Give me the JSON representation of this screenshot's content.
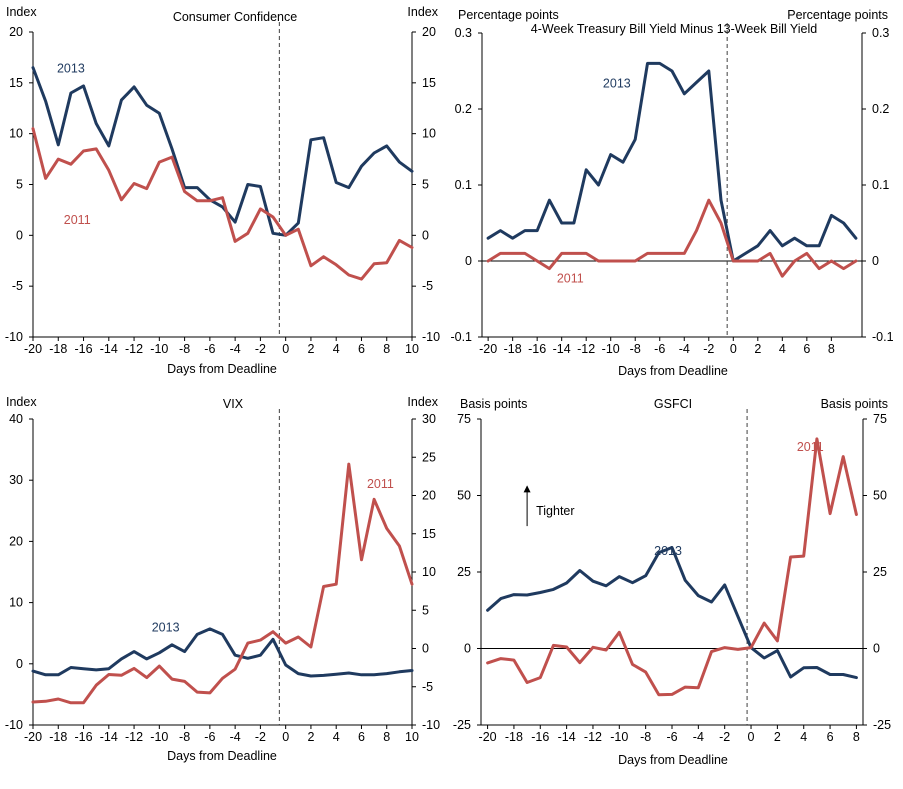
{
  "colors": {
    "series_2013": "#1f3a5f",
    "series_2011": "#c0504d",
    "axis": "#000000",
    "divider": "#404040"
  },
  "chart_data": [
    {
      "id": "cc",
      "type": "line",
      "title": "Consumer Confidence",
      "ylabel_left": "Index",
      "ylabel_right": "Index",
      "xlabel": "Days from Deadline",
      "xlim": [
        -20,
        10
      ],
      "x_ticks": [
        -20,
        -18,
        -16,
        -14,
        -12,
        -10,
        -8,
        -6,
        -4,
        -2,
        0,
        2,
        4,
        6,
        8,
        10
      ],
      "x_tick_labels": [
        "-20",
        "-18",
        "-16",
        "-14",
        "-12",
        "-10",
        "-8",
        "-6",
        "-4",
        "-2",
        "0",
        "2",
        "4",
        "6",
        "8",
        "10"
      ],
      "ylim_left": [
        -10,
        20
      ],
      "y_ticks_left": [
        -10,
        -5,
        0,
        5,
        10,
        15,
        20
      ],
      "y_tick_labels_left": [
        "-10",
        "-5",
        "0",
        "5",
        "10",
        "15",
        "20"
      ],
      "ylim_right": [
        -10,
        20
      ],
      "y_ticks_right": [
        -10,
        -5,
        0,
        5,
        10,
        15,
        20
      ],
      "y_tick_labels_right": [
        "-10",
        "-5",
        "0",
        "5",
        "10",
        "15",
        "20"
      ],
      "zero_line": false,
      "deadline_x": -0.5,
      "annotations": [],
      "series": [
        {
          "name": "2013",
          "color_key": "series_2013",
          "axis": "left",
          "label_at": [
            -17,
            16
          ],
          "x": [
            -20,
            -19,
            -18,
            -17,
            -16,
            -15,
            -14,
            -13,
            -12,
            -11,
            -10,
            -9,
            -8,
            -7,
            -6,
            -5,
            -4,
            -3,
            -2,
            -1,
            0,
            1,
            2,
            3,
            4,
            5,
            6,
            7,
            8,
            9,
            10
          ],
          "values": [
            16.5,
            13.2,
            8.9,
            14,
            14.7,
            11,
            8.8,
            13.3,
            14.6,
            12.8,
            12,
            8.5,
            4.7,
            4.7,
            3.5,
            2.8,
            1.3,
            5,
            4.8,
            0.2,
            0,
            1.2,
            9.4,
            9.6,
            5.2,
            4.7,
            6.8,
            8.1,
            8.8,
            7.2,
            6.3
          ]
        },
        {
          "name": "2011",
          "color_key": "series_2011",
          "axis": "left",
          "label_at": [
            -16.5,
            1.1
          ],
          "x": [
            -20,
            -19,
            -18,
            -17,
            -16,
            -15,
            -14,
            -13,
            -12,
            -11,
            -10,
            -9,
            -8,
            -7,
            -6,
            -5,
            -4,
            -3,
            -2,
            -1,
            0,
            1,
            2,
            3,
            4,
            5,
            6,
            7,
            8,
            9,
            10
          ],
          "values": [
            10.5,
            5.6,
            7.5,
            7,
            8.3,
            8.5,
            6.4,
            3.5,
            5.1,
            4.6,
            7.2,
            7.7,
            4.3,
            3.4,
            3.4,
            3.7,
            -0.6,
            0.2,
            2.6,
            1.8,
            0,
            0.6,
            -3,
            -2.1,
            -2.9,
            -3.9,
            -4.3,
            -2.8,
            -2.7,
            -0.5,
            -1.2
          ]
        }
      ]
    },
    {
      "id": "tb",
      "type": "line",
      "title": "4-Week Treasury Bill Yield Minus 13-Week Bill Yield",
      "ylabel_left": "Percentage  points",
      "ylabel_right": "Percentage  points",
      "xlabel": "Days from Deadline",
      "xlim": [
        -20.5,
        10.5
      ],
      "x_ticks": [
        -20,
        -18,
        -16,
        -14,
        -12,
        -10,
        -8,
        -6,
        -4,
        -2,
        0,
        2,
        4,
        6,
        8
      ],
      "x_tick_labels": [
        "-20",
        "-18",
        "-16",
        "-14",
        "-12",
        "-10",
        "-8",
        "-6",
        "-4",
        "-2",
        "0",
        "2",
        "4",
        "6",
        "8"
      ],
      "ylim_left": [
        -0.1,
        0.3
      ],
      "y_ticks_left": [
        -0.1,
        0,
        0.1,
        0.2,
        0.3
      ],
      "y_tick_labels_left": [
        "-0.1",
        "0",
        "0.1",
        "0.2",
        "0.3"
      ],
      "ylim_right": [
        -0.1,
        0.3
      ],
      "y_ticks_right": [
        -0.1,
        0,
        0.1,
        0.2,
        0.3
      ],
      "y_tick_labels_right": [
        "-0.1",
        "0",
        "0.1",
        "0.2",
        "0.3"
      ],
      "zero_line": true,
      "deadline_x": -0.5,
      "annotations": [],
      "series": [
        {
          "name": "2013",
          "color_key": "series_2013",
          "axis": "left",
          "label_at": [
            -9.5,
            0.228
          ],
          "x": [
            -20,
            -19,
            -18,
            -17,
            -16,
            -15,
            -14,
            -13,
            -12,
            -11,
            -10,
            -9,
            -8,
            -7,
            -6,
            -5,
            -4,
            -3,
            -2,
            -1,
            0,
            1,
            2,
            3,
            4,
            5,
            6,
            7,
            8,
            9,
            10
          ],
          "values": [
            0.03,
            0.04,
            0.03,
            0.04,
            0.04,
            0.08,
            0.05,
            0.05,
            0.12,
            0.1,
            0.14,
            0.13,
            0.16,
            0.26,
            0.26,
            0.25,
            0.22,
            0.235,
            0.25,
            0.08,
            0,
            0.01,
            0.02,
            0.04,
            0.02,
            0.03,
            0.02,
            0.02,
            0.06,
            0.05,
            0.03
          ]
        },
        {
          "name": "2011",
          "color_key": "series_2011",
          "axis": "left",
          "label_at": [
            -13.3,
            -0.028
          ],
          "x": [
            -20,
            -19,
            -18,
            -17,
            -16,
            -15,
            -14,
            -13,
            -12,
            -11,
            -10,
            -9,
            -8,
            -7,
            -6,
            -5,
            -4,
            -3,
            -2,
            -1,
            0,
            1,
            2,
            3,
            4,
            5,
            6,
            7,
            8,
            9,
            10
          ],
          "values": [
            0,
            0.01,
            0.01,
            0.01,
            0,
            -0.01,
            0.01,
            0.01,
            0.01,
            0,
            0,
            0,
            0,
            0.01,
            0.01,
            0.01,
            0.01,
            0.04,
            0.08,
            0.05,
            0,
            0,
            0,
            0.01,
            -0.02,
            0,
            0.01,
            -0.01,
            0,
            -0.01,
            0
          ]
        }
      ]
    },
    {
      "id": "vix",
      "type": "line",
      "title": "VIX",
      "ylabel_left": "Index",
      "ylabel_right": "Index",
      "xlabel": "Days from Deadline",
      "xlim": [
        -20,
        10
      ],
      "x_ticks": [
        -20,
        -18,
        -16,
        -14,
        -12,
        -10,
        -8,
        -6,
        -4,
        -2,
        0,
        2,
        4,
        6,
        8,
        10
      ],
      "x_tick_labels": [
        "-20",
        "-18",
        "-16",
        "-14",
        "-12",
        "-10",
        "-8",
        "-6",
        "-4",
        "-2",
        "0",
        "2",
        "4",
        "6",
        "8",
        "10"
      ],
      "ylim_left": [
        -10,
        40
      ],
      "y_ticks_left": [
        -10,
        0,
        10,
        20,
        30,
        40
      ],
      "y_tick_labels_left": [
        "-10",
        "0",
        "10",
        "20",
        "30",
        "40"
      ],
      "ylim_right": [
        -10,
        30
      ],
      "y_ticks_right": [
        -10,
        -5,
        0,
        5,
        10,
        15,
        20,
        25,
        30
      ],
      "y_tick_labels_right": [
        "-10",
        "-5",
        "0",
        "5",
        "10",
        "15",
        "20",
        "25",
        "30"
      ],
      "zero_line": false,
      "deadline_x": -0.5,
      "annotations": [],
      "series": [
        {
          "name": "2013",
          "color_key": "series_2013",
          "axis": "left",
          "label_at": [
            -9.5,
            5.3
          ],
          "x": [
            -20,
            -19,
            -18,
            -17,
            -16,
            -15,
            -14,
            -13,
            -12,
            -11,
            -10,
            -9,
            -8,
            -7,
            -6,
            -5,
            -4,
            -3,
            -2,
            -1,
            0,
            1,
            2,
            3,
            4,
            5,
            6,
            7,
            8,
            9,
            10
          ],
          "values": [
            -1.2,
            -1.8,
            -1.8,
            -0.6,
            -0.8,
            -1,
            -0.8,
            0.8,
            2,
            0.8,
            1.8,
            3.1,
            2,
            4.8,
            5.7,
            4.8,
            1.4,
            0.9,
            1.4,
            4,
            -0.2,
            -1.6,
            -2,
            -1.9,
            -1.7,
            -1.5,
            -1.8,
            -1.8,
            -1.6,
            -1.3,
            -1.1
          ]
        },
        {
          "name": "2011",
          "color_key": "series_2011",
          "axis": "right",
          "label_at": [
            7.5,
            21
          ],
          "x": [
            -20,
            -19,
            -18,
            -17,
            -16,
            -15,
            -14,
            -13,
            -12,
            -11,
            -10,
            -9,
            -8,
            -7,
            -6,
            -5,
            -4,
            -3,
            -2,
            -1,
            0,
            1,
            2,
            3,
            4,
            5,
            6,
            7,
            8,
            9,
            10
          ],
          "values": [
            -7,
            -6.9,
            -6.6,
            -7.1,
            -7.1,
            -4.8,
            -3.4,
            -3.5,
            -2.6,
            -3.8,
            -2.3,
            -4,
            -4.3,
            -5.7,
            -5.8,
            -3.9,
            -2.7,
            0.7,
            1.1,
            2.2,
            0.7,
            1.5,
            0.2,
            8.1,
            8.4,
            24.1,
            11.6,
            19.5,
            15.7,
            13.4,
            8.4
          ]
        }
      ]
    },
    {
      "id": "gsfci",
      "type": "line",
      "title": "GSFCI",
      "ylabel_left": "Basis points",
      "ylabel_right": "Basis points",
      "xlabel": "Days from Deadline",
      "xlim": [
        -20.5,
        8.5
      ],
      "x_ticks": [
        -20,
        -18,
        -16,
        -14,
        -12,
        -10,
        -8,
        -6,
        -4,
        -2,
        0,
        2,
        4,
        6,
        8
      ],
      "x_tick_labels": [
        "-20",
        "-18",
        "-16",
        "-14",
        "-12",
        "-10",
        "-8",
        "-6",
        "-4",
        "-2",
        "0",
        "2",
        "4",
        "6",
        "8"
      ],
      "ylim_left": [
        -25,
        75
      ],
      "y_ticks_left": [
        -25,
        0,
        25,
        50,
        75
      ],
      "y_tick_labels_left": [
        "-25",
        "0",
        "25",
        "50",
        "75"
      ],
      "ylim_right": [
        -25,
        75
      ],
      "y_ticks_right": [
        -25,
        0,
        25,
        50,
        75
      ],
      "y_tick_labels_right": [
        "-25",
        "0",
        "25",
        "50",
        "75"
      ],
      "zero_line": true,
      "deadline_x": -0.3,
      "annotations": [
        {
          "text": "Tighter",
          "x": -17,
          "y": 45,
          "arrow_from": 40,
          "arrow_to": 53
        }
      ],
      "series": [
        {
          "name": "2013",
          "color_key": "series_2013",
          "axis": "left",
          "label_at": [
            -6.3,
            30.5
          ],
          "x": [
            -20,
            -19,
            -18,
            -17,
            -16,
            -15,
            -14,
            -13,
            -12,
            -11,
            -10,
            -9,
            -8,
            -7,
            -6,
            -5,
            -4,
            -3,
            -2,
            -1,
            0,
            1,
            2,
            3,
            4,
            5,
            6,
            7,
            8
          ],
          "values": [
            12.5,
            16.3,
            17.6,
            17.5,
            18.3,
            19.3,
            21.4,
            25.5,
            22,
            20.5,
            23.5,
            21.5,
            23.8,
            31.3,
            33,
            22.3,
            17.3,
            15.2,
            20.8,
            10.5,
            0.3,
            -3.1,
            -0.7,
            -9.3,
            -6.3,
            -6.2,
            -8.5,
            -8.5,
            -9.5
          ]
        },
        {
          "name": "2011",
          "color_key": "series_2011",
          "axis": "left",
          "label_at": [
            4.5,
            64.5
          ],
          "x": [
            -20,
            -19,
            -18,
            -17,
            -16,
            -15,
            -14,
            -13,
            -12,
            -11,
            -10,
            -9,
            -8,
            -7,
            -6,
            -5,
            -4,
            -3,
            -2,
            -1,
            0,
            1,
            2,
            3,
            4,
            5,
            6,
            7,
            8
          ],
          "values": [
            -4.7,
            -3.3,
            -3.8,
            -11.1,
            -9.5,
            1,
            0.5,
            -4.6,
            0.4,
            -0.5,
            5.3,
            -5.2,
            -7.7,
            -15.1,
            -15,
            -12.6,
            -12.8,
            -1,
            0.3,
            -0.3,
            0.3,
            8.3,
            2.5,
            29.9,
            30.2,
            68.5,
            44.1,
            62.7,
            43.8
          ]
        }
      ]
    }
  ]
}
